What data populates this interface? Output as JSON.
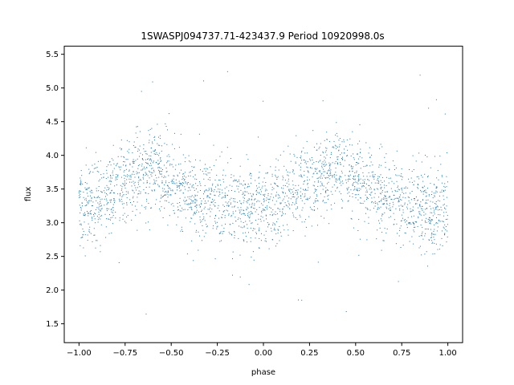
{
  "chart_data": {
    "type": "scatter",
    "title": "1SWASPJ094737.71-423437.9 Period 10920998.0s",
    "xlabel": "phase",
    "ylabel": "flux",
    "xlim": [
      -1.08,
      1.08
    ],
    "ylim": [
      1.22,
      5.62
    ],
    "xticks": [
      -1.0,
      -0.75,
      -0.5,
      -0.25,
      0.0,
      0.25,
      0.5,
      0.75,
      1.0
    ],
    "xtick_labels": [
      "−1.00",
      "−0.75",
      "−0.50",
      "−0.25",
      "0.00",
      "0.25",
      "0.50",
      "0.75",
      "1.00"
    ],
    "yticks": [
      1.5,
      2.0,
      2.5,
      3.0,
      3.5,
      4.0,
      4.5,
      5.0,
      5.5
    ],
    "ytick_labels": [
      "1.5",
      "2.0",
      "2.5",
      "3.0",
      "3.5",
      "4.0",
      "4.5",
      "5.0",
      "5.5"
    ],
    "grid": false,
    "marker_color": "#1f77b4",
    "x_range": [
      -1.0,
      1.0
    ],
    "phase_profile": [
      {
        "phase": -1.0,
        "flux": 3.2
      },
      {
        "phase": -0.9,
        "flux": 3.3
      },
      {
        "phase": -0.8,
        "flux": 3.55
      },
      {
        "phase": -0.7,
        "flux": 3.7
      },
      {
        "phase": -0.6,
        "flux": 3.85
      },
      {
        "phase": -0.5,
        "flux": 3.6
      },
      {
        "phase": -0.4,
        "flux": 3.4
      },
      {
        "phase": -0.3,
        "flux": 3.35
      },
      {
        "phase": -0.2,
        "flux": 3.25
      },
      {
        "phase": -0.1,
        "flux": 3.2
      },
      {
        "phase": 0.0,
        "flux": 3.15
      },
      {
        "phase": 0.1,
        "flux": 3.3
      },
      {
        "phase": 0.2,
        "flux": 3.55
      },
      {
        "phase": 0.3,
        "flux": 3.7
      },
      {
        "phase": 0.4,
        "flux": 3.85
      },
      {
        "phase": 0.5,
        "flux": 3.6
      },
      {
        "phase": 0.6,
        "flux": 3.4
      },
      {
        "phase": 0.7,
        "flux": 3.35
      },
      {
        "phase": 0.8,
        "flux": 3.25
      },
      {
        "phase": 0.9,
        "flux": 3.2
      },
      {
        "phase": 1.0,
        "flux": 3.2
      }
    ],
    "scatter_sd": 0.3,
    "outlier_range": [
      1.4,
      5.35
    ]
  }
}
